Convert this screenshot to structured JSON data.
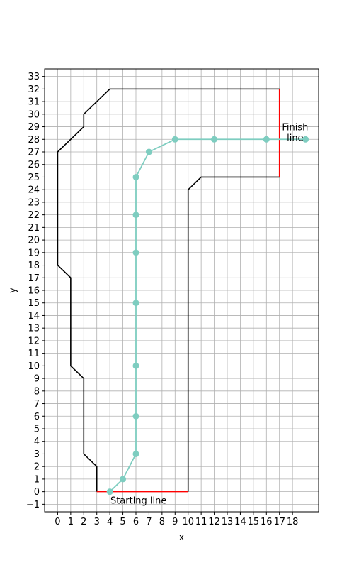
{
  "chart_data": {
    "type": "line",
    "xlabel": "x",
    "ylabel": "y",
    "xlim": [
      -1,
      20
    ],
    "ylim": [
      -1.6,
      33.6
    ],
    "x_ticks": [
      0,
      1,
      2,
      3,
      4,
      5,
      6,
      7,
      8,
      9,
      10,
      11,
      12,
      13,
      14,
      15,
      16,
      17,
      18
    ],
    "y_ticks": [
      -1,
      0,
      1,
      2,
      3,
      4,
      5,
      6,
      7,
      8,
      9,
      10,
      11,
      12,
      13,
      14,
      15,
      16,
      17,
      18,
      19,
      20,
      21,
      22,
      23,
      24,
      25,
      26,
      27,
      28,
      29,
      30,
      31,
      32,
      33
    ],
    "grid": true,
    "colors": {
      "track": "#000000",
      "line_marks": "#ff0000",
      "path": "#7ecdc0"
    },
    "track_outer": [
      [
        3,
        0
      ],
      [
        3,
        2
      ],
      [
        2,
        3
      ],
      [
        2,
        9
      ],
      [
        1,
        10
      ],
      [
        1,
        17
      ],
      [
        0,
        18
      ],
      [
        0,
        27
      ],
      [
        2,
        29
      ],
      [
        2,
        30
      ],
      [
        4,
        32
      ],
      [
        17,
        32
      ]
    ],
    "track_inner": [
      [
        10,
        0
      ],
      [
        10,
        24
      ],
      [
        11,
        25
      ],
      [
        17,
        25
      ]
    ],
    "starting_line": {
      "points": [
        [
          3,
          0
        ],
        [
          10,
          0
        ]
      ],
      "label": "Starting line",
      "label_x": 6.2,
      "label_y": -0.7
    },
    "finish_line": {
      "points": [
        [
          17,
          25
        ],
        [
          17,
          32
        ]
      ],
      "label": "Finish\nline",
      "label_x": 18.2,
      "label_y": 28.5
    },
    "path": {
      "x": [
        4,
        5,
        6,
        6,
        6,
        6,
        6,
        6,
        6,
        7,
        9,
        12,
        16,
        19
      ],
      "y": [
        0,
        1,
        3,
        6,
        10,
        15,
        19,
        22,
        25,
        27,
        28,
        28,
        28,
        28
      ]
    }
  }
}
